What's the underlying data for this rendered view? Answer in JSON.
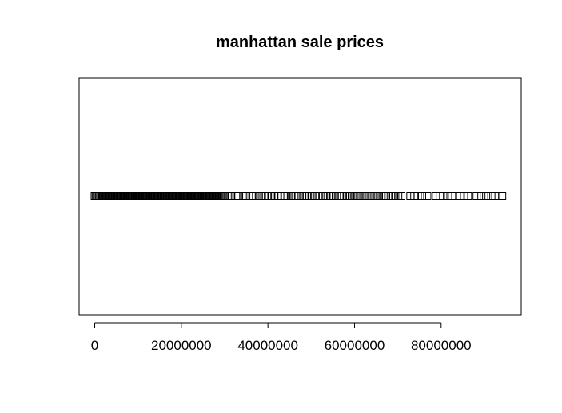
{
  "chart_data": {
    "type": "scatter",
    "title": "manhattan sale prices",
    "xlabel": "",
    "ylabel": "",
    "xlim": [
      -3600000,
      98500000
    ],
    "x_ticks": [
      0,
      20000000,
      40000000,
      60000000,
      80000000
    ],
    "x_tick_labels": [
      "0",
      "20000000",
      "40000000",
      "60000000",
      "80000000"
    ],
    "marker": "open-square",
    "grid": false,
    "dense_range": [
      0,
      30000000
    ],
    "dense_step": 250000,
    "points": [
      30700000,
      31400000,
      32700000,
      33200000,
      34300000,
      35000000,
      35600000,
      36400000,
      37300000,
      37900000,
      38600000,
      39300000,
      40000000,
      40800000,
      41500000,
      42300000,
      43100000,
      43800000,
      44500000,
      45300000,
      45900000,
      46500000,
      47100000,
      47800000,
      48400000,
      49000000,
      49600000,
      50200000,
      50900000,
      51500000,
      52100000,
      52700000,
      53400000,
      54000000,
      54600000,
      55200000,
      55900000,
      56500000,
      57100000,
      57700000,
      58300000,
      59000000,
      59600000,
      60200000,
      60900000,
      61500000,
      62200000,
      62800000,
      63500000,
      64100000,
      64800000,
      65400000,
      66100000,
      66700000,
      67300000,
      67900000,
      68700000,
      69400000,
      70100000,
      70800000,
      72900000,
      73800000,
      74600000,
      75600000,
      76800000,
      78800000,
      79700000,
      80500000,
      81600000,
      82500000,
      84400000,
      85300000,
      86200000,
      88200000,
      89300000,
      90400000,
      91600000,
      92500000,
      94100000
    ]
  }
}
